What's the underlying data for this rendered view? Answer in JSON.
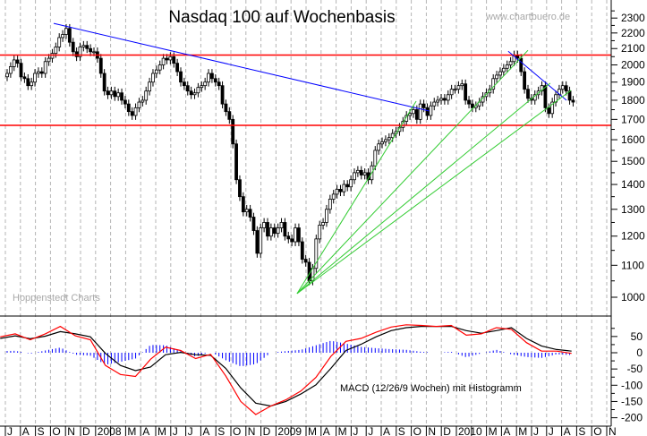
{
  "chart_data": {
    "type": "candlestick",
    "title": "Nasdaq 100 auf Wochenbasis",
    "watermark_top": "www.chartbuero.de",
    "watermark_bottom": "Hoppenstedt Charts",
    "price_axis": {
      "scale": "log",
      "ylim": [
        1000,
        2300
      ],
      "ticks": [
        1000,
        1100,
        1200,
        1300,
        1400,
        1500,
        1600,
        1700,
        1800,
        1900,
        2000,
        2100,
        2200,
        2300
      ]
    },
    "x_axis": {
      "start": "2007-07",
      "month_labels": [
        "J",
        "A",
        "S",
        "O",
        "N",
        "D",
        "2008",
        "",
        "M",
        "A",
        "M",
        "J",
        "J",
        "A",
        "S",
        "O",
        "N",
        "D",
        "2009",
        "",
        "M",
        "A",
        "M",
        "J",
        "J",
        "A",
        "S",
        "O",
        "N",
        "D",
        "2010",
        "",
        "M",
        "A",
        "M",
        "J",
        "J",
        "A",
        "S",
        "O",
        "N"
      ]
    },
    "weekly_close": [
      1950,
      1990,
      2030,
      2010,
      1930,
      1920,
      1880,
      1900,
      1950,
      1960,
      1950,
      2020,
      2040,
      2070,
      2110,
      2170,
      2190,
      2230,
      2140,
      2080,
      2050,
      2110,
      2120,
      2100,
      2080,
      2080,
      2040,
      1950,
      1850,
      1830,
      1850,
      1820,
      1840,
      1800,
      1780,
      1740,
      1720,
      1760,
      1790,
      1800,
      1850,
      1900,
      1950,
      1970,
      2000,
      2040,
      2030,
      2050,
      2010,
      1960,
      1900,
      1880,
      1850,
      1830,
      1840,
      1870,
      1880,
      1900,
      1950,
      1920,
      1900,
      1880,
      1780,
      1740,
      1700,
      1580,
      1420,
      1350,
      1290,
      1300,
      1270,
      1220,
      1140,
      1230,
      1250,
      1200,
      1230,
      1210,
      1230,
      1250,
      1200,
      1190,
      1180,
      1230,
      1180,
      1120,
      1110,
      1050,
      1090,
      1190,
      1240,
      1250,
      1300,
      1340,
      1360,
      1380,
      1370,
      1400,
      1390,
      1420,
      1450,
      1460,
      1440,
      1450,
      1420,
      1480,
      1550,
      1580,
      1590,
      1600,
      1610,
      1630,
      1640,
      1660,
      1690,
      1720,
      1730,
      1750,
      1700,
      1780,
      1760,
      1720,
      1770,
      1790,
      1800,
      1810,
      1800,
      1830,
      1860,
      1860,
      1880,
      1890,
      1800,
      1780,
      1760,
      1770,
      1790,
      1820,
      1840,
      1860,
      1920,
      1940,
      1960,
      1980,
      2000,
      2020,
      2060,
      2040,
      1960,
      1860,
      1810,
      1800,
      1830,
      1850,
      1880,
      1760,
      1730,
      1790,
      1830,
      1860,
      1880,
      1850,
      1800,
      1790
    ],
    "wick_pct": 1.3,
    "horizontal_lines": [
      {
        "name": "resistance",
        "price": 2060,
        "color": "#ff0000"
      },
      {
        "name": "support",
        "price": 1670,
        "color": "#ff0000"
      }
    ],
    "trend_lines": [
      {
        "name": "downtrend-2007",
        "color": "#0000ff",
        "from": [
          13.4,
          2264
        ],
        "to": [
          121.6,
          1743
        ]
      },
      {
        "name": "downtrend-2010",
        "color": "#0000ff",
        "from": [
          144.3,
          2083
        ],
        "to": [
          161.1,
          1800
        ]
      },
      {
        "name": "fan-1",
        "color": "#33cc33",
        "from": [
          83.5,
          1011
        ],
        "to": [
          117.8,
          1795
        ]
      },
      {
        "name": "fan-2",
        "color": "#33cc33",
        "from": [
          83.5,
          1011
        ],
        "to": [
          150,
          2089
        ]
      },
      {
        "name": "fan-3",
        "color": "#33cc33",
        "from": [
          83.5,
          1011
        ],
        "to": [
          156.4,
          1894
        ]
      },
      {
        "name": "fan-4",
        "color": "#33cc33",
        "from": [
          83.5,
          1011
        ],
        "to": [
          162.4,
          1854
        ]
      }
    ],
    "macd": {
      "label": "MACD (12/26/9 Wochen) mit Histogramm",
      "ylim": [
        -210,
        90
      ],
      "ticks": [
        50,
        0,
        -50,
        -100,
        -150,
        -200
      ],
      "start_week": -2,
      "step_weeks": 4.33,
      "macd_line": [
        49,
        58,
        40,
        58,
        81,
        52,
        40,
        -39,
        -67,
        -73,
        -20,
        17,
        7,
        -18,
        -5,
        -71,
        -150,
        -190,
        -164,
        -145,
        -118,
        -76,
        -11,
        35,
        44,
        63,
        79,
        86,
        84,
        81,
        84,
        54,
        58,
        77,
        72,
        31,
        5,
        5,
        -2
      ],
      "signal_line": [
        44,
        52,
        43,
        51,
        65,
        58,
        49,
        -2,
        -39,
        -55,
        -44,
        -6,
        1,
        -6,
        -8,
        -48,
        -108,
        -155,
        -164,
        -150,
        -127,
        -99,
        -48,
        7,
        26,
        49,
        68,
        77,
        81,
        81,
        81,
        68,
        60,
        68,
        77,
        44,
        21,
        10,
        5
      ],
      "colors": {
        "macd": "#ff0000",
        "signal": "#000000",
        "histogram": "#0000ff"
      }
    }
  }
}
